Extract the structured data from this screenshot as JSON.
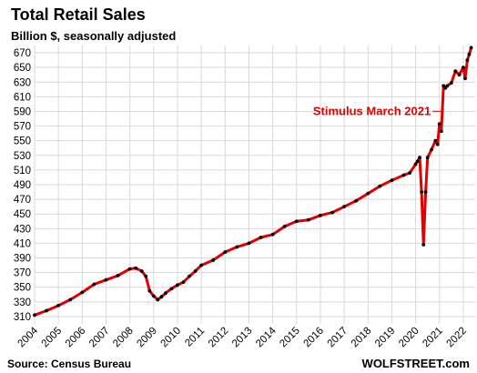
{
  "chart_data": {
    "type": "line",
    "title": "Total Retail Sales",
    "subtitle": "Billion $, seasonally adjusted",
    "source": "Source: Census Bureau",
    "brand": "WOLFSTREET.com",
    "ylim": [
      300,
      680
    ],
    "yticks": [
      310,
      330,
      350,
      370,
      390,
      410,
      430,
      450,
      470,
      490,
      510,
      530,
      550,
      570,
      590,
      610,
      630,
      650,
      670
    ],
    "xlim": [
      2004,
      2022.5
    ],
    "xticks": [
      2004,
      2005,
      2006,
      2007,
      2008,
      2009,
      2010,
      2011,
      2012,
      2013,
      2014,
      2015,
      2016,
      2017,
      2018,
      2019,
      2020,
      2021,
      2022
    ],
    "grid": true,
    "colors": {
      "line": "#e00000",
      "marker": "#000000",
      "annotation": "#e00000"
    },
    "annotation": {
      "text": "Stimulus March 2021",
      "x": 2021.17,
      "y": 625
    },
    "series": [
      {
        "x": [
          2004.0,
          2004.5,
          2005.0,
          2005.5,
          2006.0,
          2006.5,
          2007.0,
          2007.5,
          2008.0,
          2008.25,
          2008.5,
          2008.67,
          2008.83,
          2009.0,
          2009.17,
          2009.33,
          2009.5,
          2009.75,
          2010.0,
          2010.25,
          2010.5,
          2010.75,
          2011.0,
          2011.5,
          2012.0,
          2012.5,
          2013.0,
          2013.5,
          2014.0,
          2014.5,
          2015.0,
          2015.5,
          2016.0,
          2016.5,
          2017.0,
          2017.5,
          2018.0,
          2018.5,
          2019.0,
          2019.5,
          2019.75,
          2020.0,
          2020.08,
          2020.17,
          2020.25,
          2020.33,
          2020.42,
          2020.5,
          2020.67,
          2020.83,
          2020.92,
          2021.0,
          2021.08,
          2021.17,
          2021.25,
          2021.33,
          2021.5,
          2021.67,
          2021.83,
          2022.0,
          2022.08,
          2022.17,
          2022.25,
          2022.33
        ],
        "y": [
          312,
          318,
          325,
          333,
          343,
          354,
          360,
          366,
          375,
          376,
          372,
          365,
          345,
          338,
          333,
          337,
          342,
          348,
          353,
          357,
          365,
          372,
          380,
          387,
          398,
          405,
          410,
          418,
          422,
          433,
          440,
          442,
          448,
          452,
          460,
          468,
          478,
          488,
          496,
          503,
          506,
          518,
          522,
          527,
          480,
          408,
          480,
          527,
          538,
          550,
          545,
          573,
          563,
          625,
          622,
          625,
          629,
          645,
          640,
          650,
          635,
          660,
          668,
          677
        ]
      }
    ]
  }
}
